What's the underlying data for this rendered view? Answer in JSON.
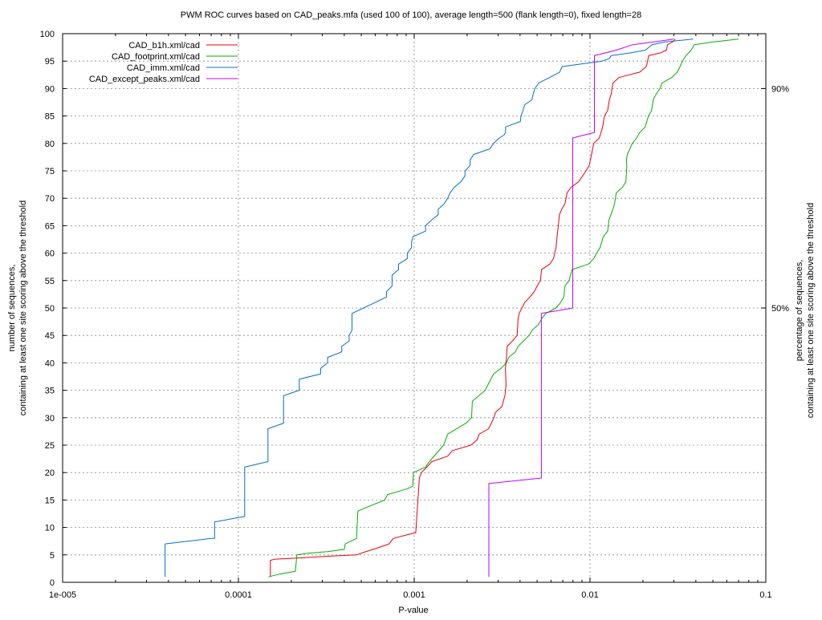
{
  "chart_data": {
    "type": "line",
    "title": "PWM ROC curves based on CAD_peaks.mfa (used 100 of 100), average length=500 (flank length=0), fixed length=28",
    "xlabel": "P-value",
    "ylabel": [
      "number of sequences,",
      "containing at least one site scoring above the threshold"
    ],
    "y2label": [
      "percentage of sequences,",
      "containing at least one site scoring above the threshold"
    ],
    "xscale": "log",
    "xlim": [
      1e-05,
      0.1
    ],
    "ylim": [
      0,
      100
    ],
    "grid": true,
    "legend_position": "top-left",
    "x_ticks": [
      {
        "value": 1e-05,
        "label": "1e-005"
      },
      {
        "value": 0.0001,
        "label": "0.0001"
      },
      {
        "value": 0.001,
        "label": "0.001"
      },
      {
        "value": 0.01,
        "label": "0.01"
      },
      {
        "value": 0.1,
        "label": "0.1"
      }
    ],
    "y_ticks": [
      0,
      5,
      10,
      15,
      20,
      25,
      30,
      35,
      40,
      45,
      50,
      55,
      60,
      65,
      70,
      75,
      80,
      85,
      90,
      95,
      100
    ],
    "y2_ticks": [
      {
        "value": 50,
        "label": "50%"
      },
      {
        "value": 90,
        "label": "90%"
      }
    ],
    "series": [
      {
        "name": "CAD_b1h.xml/cad",
        "color": "#e8000b",
        "points": [
          [
            0.000152,
            1
          ],
          [
            0.000152,
            4
          ],
          [
            0.00016,
            4.2
          ],
          [
            0.00024,
            4.5
          ],
          [
            0.00034,
            4.8
          ],
          [
            0.00047,
            5
          ],
          [
            0.00052,
            5.5
          ],
          [
            0.00061,
            6.2
          ],
          [
            0.00072,
            7
          ],
          [
            0.00076,
            8
          ],
          [
            0.00092,
            8.7
          ],
          [
            0.00102,
            9
          ],
          [
            0.00107,
            19
          ],
          [
            0.0011,
            20
          ],
          [
            0.00118,
            21
          ],
          [
            0.00126,
            22
          ],
          [
            0.00155,
            23
          ],
          [
            0.00165,
            24
          ],
          [
            0.0021,
            25
          ],
          [
            0.00228,
            26
          ],
          [
            0.00234,
            27
          ],
          [
            0.00265,
            28
          ],
          [
            0.00284,
            30
          ],
          [
            0.0029,
            31
          ],
          [
            0.00315,
            32
          ],
          [
            0.00328,
            34
          ],
          [
            0.00333,
            36
          ],
          [
            0.0033,
            39
          ],
          [
            0.00335,
            41
          ],
          [
            0.00338,
            43
          ],
          [
            0.00362,
            44
          ],
          [
            0.00385,
            45
          ],
          [
            0.0039,
            48
          ],
          [
            0.00395,
            49
          ],
          [
            0.00425,
            51
          ],
          [
            0.00455,
            52
          ],
          [
            0.00482,
            53
          ],
          [
            0.005,
            54
          ],
          [
            0.00522,
            55
          ],
          [
            0.0053,
            57
          ],
          [
            0.0059,
            58
          ],
          [
            0.0062,
            59
          ],
          [
            0.0064,
            61
          ],
          [
            0.0065,
            63
          ],
          [
            0.0066,
            65
          ],
          [
            0.0067,
            67
          ],
          [
            0.0069,
            68
          ],
          [
            0.0072,
            69
          ],
          [
            0.0074,
            71
          ],
          [
            0.0078,
            72
          ],
          [
            0.0086,
            73
          ],
          [
            0.0095,
            75
          ],
          [
            0.0099,
            76
          ],
          [
            0.0102,
            78
          ],
          [
            0.0105,
            80
          ],
          [
            0.0113,
            81
          ],
          [
            0.0118,
            83
          ],
          [
            0.0121,
            85
          ],
          [
            0.0126,
            86
          ],
          [
            0.0129,
            88
          ],
          [
            0.0132,
            89
          ],
          [
            0.0135,
            91
          ],
          [
            0.0146,
            92
          ],
          [
            0.0167,
            92.5
          ],
          [
            0.0192,
            93
          ],
          [
            0.0209,
            94
          ],
          [
            0.0216,
            96
          ],
          [
            0.0252,
            96.5
          ],
          [
            0.0272,
            97
          ],
          [
            0.0276,
            98
          ],
          [
            0.0295,
            98.5
          ],
          [
            0.0305,
            99
          ]
        ]
      },
      {
        "name": "CAD_footprint.xml/cad",
        "color": "#00b000",
        "points": [
          [
            0.000148,
            1
          ],
          [
            0.000172,
            1.5
          ],
          [
            0.000211,
            2
          ],
          [
            0.000215,
            5
          ],
          [
            0.00025,
            5.3
          ],
          [
            0.00032,
            5.6
          ],
          [
            0.0004,
            6
          ],
          [
            0.000405,
            7
          ],
          [
            0.00047,
            8
          ],
          [
            0.000478,
            13
          ],
          [
            0.00057,
            14
          ],
          [
            0.00068,
            15
          ],
          [
            0.000705,
            16
          ],
          [
            0.000905,
            17
          ],
          [
            0.00098,
            17.5
          ],
          [
            0.00099,
            20
          ],
          [
            0.00116,
            21
          ],
          [
            0.00122,
            22
          ],
          [
            0.00147,
            25
          ],
          [
            0.00155,
            27
          ],
          [
            0.00197,
            29
          ],
          [
            0.00212,
            30
          ],
          [
            0.00214,
            33
          ],
          [
            0.00253,
            35
          ],
          [
            0.00283,
            38
          ],
          [
            0.00312,
            39
          ],
          [
            0.00335,
            40
          ],
          [
            0.00345,
            41
          ],
          [
            0.00376,
            42
          ],
          [
            0.0039,
            43
          ],
          [
            0.0045,
            45
          ],
          [
            0.0047,
            46
          ],
          [
            0.0051,
            47
          ],
          [
            0.0053,
            48
          ],
          [
            0.0056,
            49
          ],
          [
            0.0064,
            50
          ],
          [
            0.0068,
            51
          ],
          [
            0.0071,
            52
          ],
          [
            0.0072,
            54
          ],
          [
            0.0076,
            55
          ],
          [
            0.0079,
            57
          ],
          [
            0.0098,
            58
          ],
          [
            0.0105,
            59
          ],
          [
            0.0109,
            60
          ],
          [
            0.0114,
            61
          ],
          [
            0.0119,
            63
          ],
          [
            0.0126,
            64
          ],
          [
            0.0128,
            66
          ],
          [
            0.0135,
            68
          ],
          [
            0.0138,
            69
          ],
          [
            0.0141,
            71
          ],
          [
            0.0153,
            72
          ],
          [
            0.016,
            73
          ],
          [
            0.0162,
            76
          ],
          [
            0.0161,
            77
          ],
          [
            0.0163,
            78
          ],
          [
            0.0174,
            80
          ],
          [
            0.0184,
            81
          ],
          [
            0.0192,
            82
          ],
          [
            0.0206,
            83
          ],
          [
            0.0215,
            85
          ],
          [
            0.0224,
            86
          ],
          [
            0.0229,
            88
          ],
          [
            0.0238,
            89
          ],
          [
            0.025,
            90
          ],
          [
            0.0257,
            91
          ],
          [
            0.0291,
            92
          ],
          [
            0.0314,
            93
          ],
          [
            0.0325,
            94
          ],
          [
            0.0336,
            95
          ],
          [
            0.0351,
            96
          ],
          [
            0.0376,
            97
          ],
          [
            0.0392,
            98
          ],
          [
            0.05,
            98.5
          ],
          [
            0.0697,
            99
          ]
        ]
      },
      {
        "name": "CAD_imm.xml/cad",
        "color": "#0070d0",
        "points": [
          [
            3.83e-05,
            1
          ],
          [
            3.83e-05,
            7
          ],
          [
            7e-05,
            8
          ],
          [
            7.32e-05,
            8
          ],
          [
            7.32e-05,
            11
          ],
          [
            0.0001085,
            12
          ],
          [
            0.0001085,
            21
          ],
          [
            0.0001472,
            22
          ],
          [
            0.0001472,
            28
          ],
          [
            0.0001806,
            29
          ],
          [
            0.0001806,
            34
          ],
          [
            0.0002218,
            35
          ],
          [
            0.0002218,
            37
          ],
          [
            0.0002936,
            38
          ],
          [
            0.0002936,
            39
          ],
          [
            0.0003215,
            40
          ],
          [
            0.0003215,
            41
          ],
          [
            0.0003871,
            42
          ],
          [
            0.0003871,
            43
          ],
          [
            0.0004268,
            44
          ],
          [
            0.0004268,
            45
          ],
          [
            0.0004425,
            46
          ],
          [
            0.0004425,
            49
          ],
          [
            0.0006968,
            52
          ],
          [
            0.0006968,
            53
          ],
          [
            0.0007482,
            54
          ],
          [
            0.0007482,
            56
          ],
          [
            0.0008142,
            57
          ],
          [
            0.0008142,
            58
          ],
          [
            0.0009133,
            59
          ],
          [
            0.0009133,
            60
          ],
          [
            0.0009664,
            61
          ],
          [
            0.0009664,
            62
          ],
          [
            0.0009836,
            63
          ],
          [
            0.00116,
            64
          ],
          [
            0.00116,
            65
          ],
          [
            0.00125,
            66
          ],
          [
            0.00137,
            67
          ],
          [
            0.00137,
            68
          ],
          [
            0.00148,
            69
          ],
          [
            0.00155,
            70
          ],
          [
            0.0016,
            71
          ],
          [
            0.00169,
            72
          ],
          [
            0.00184,
            73
          ],
          [
            0.00194,
            74
          ],
          [
            0.00195,
            75
          ],
          [
            0.00208,
            76
          ],
          [
            0.00208,
            77
          ],
          [
            0.00218,
            78
          ],
          [
            0.00269,
            79
          ],
          [
            0.00283,
            80
          ],
          [
            0.00305,
            81
          ],
          [
            0.00324,
            81.5
          ],
          [
            0.00331,
            82
          ],
          [
            0.00331,
            83
          ],
          [
            0.00402,
            84
          ],
          [
            0.00405,
            85
          ],
          [
            0.00416,
            86
          ],
          [
            0.00424,
            87
          ],
          [
            0.00468,
            88
          ],
          [
            0.00475,
            89
          ],
          [
            0.00486,
            90
          ],
          [
            0.0051,
            91
          ],
          [
            0.00588,
            92
          ],
          [
            0.00672,
            93
          ],
          [
            0.00694,
            94
          ],
          [
            0.01171,
            95
          ],
          [
            0.01293,
            95.5
          ],
          [
            0.01318,
            96
          ],
          [
            0.01706,
            96.5
          ],
          [
            0.02065,
            97
          ],
          [
            0.02251,
            98
          ],
          [
            0.0267,
            98.5
          ],
          [
            0.0386,
            99
          ]
        ]
      },
      {
        "name": "CAD_except_peaks.xml/cad",
        "color": "#c000ff",
        "points": [
          [
            0.00266,
            1
          ],
          [
            0.00266,
            18
          ],
          [
            0.00529,
            19
          ],
          [
            0.00529,
            49
          ],
          [
            0.00798,
            50
          ],
          [
            0.00798,
            81
          ],
          [
            0.0106,
            82
          ],
          [
            0.0106,
            96
          ],
          [
            0.0141,
            97
          ],
          [
            0.0175,
            98
          ],
          [
            0.0231,
            98.5
          ],
          [
            0.0299,
            99
          ]
        ]
      }
    ]
  }
}
